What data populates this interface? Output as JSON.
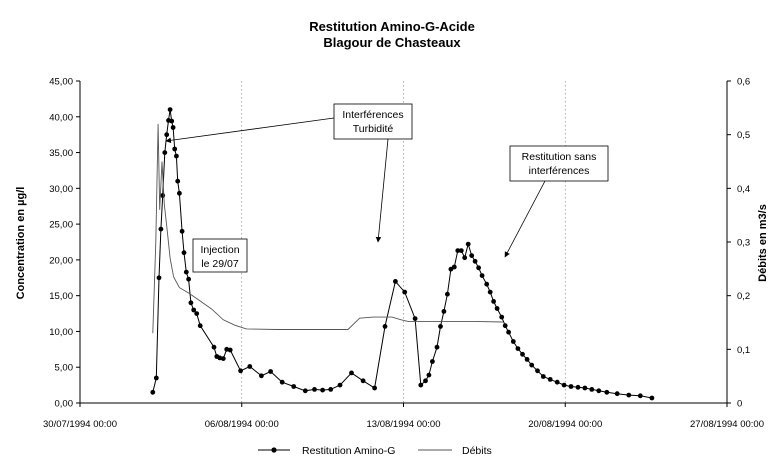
{
  "chart_data": {
    "type": "line",
    "title_line1": "Restitution Amino-G-Acide",
    "title_line2": "Blagour de Chasteaux",
    "ylabel_left": "Concentration en µg/l",
    "ylabel_right": "Débits en m3/s",
    "ylim_left": [
      0,
      45
    ],
    "ylim_right": [
      0,
      0.6
    ],
    "xlim_days": [
      0,
      28
    ],
    "y_ticks_left": [
      "0,00",
      "5,00",
      "10,00",
      "15,00",
      "20,00",
      "25,00",
      "30,00",
      "35,00",
      "40,00",
      "45,00"
    ],
    "y_ticks_right": [
      "0",
      "0,1",
      "0,2",
      "0,3",
      "0,4",
      "0,5",
      "0,6"
    ],
    "x_ticks": [
      {
        "day": 0,
        "label": "30/07/1994 00:00"
      },
      {
        "day": 7,
        "label": "06/08/1994 00:00"
      },
      {
        "day": 14,
        "label": "13/08/1994 00:00"
      },
      {
        "day": 21,
        "label": "20/08/1994 00:00"
      },
      {
        "day": 28,
        "label": "27/08/1994 00:00"
      }
    ],
    "gridlines": "vertical-dotted",
    "series": [
      {
        "name": "Restitution Amino-G",
        "axis": "left",
        "marker": "dot",
        "points": [
          [
            3.15,
            1.5
          ],
          [
            3.3,
            3.5
          ],
          [
            3.42,
            17.5
          ],
          [
            3.5,
            24.3
          ],
          [
            3.58,
            29
          ],
          [
            3.67,
            35
          ],
          [
            3.75,
            37.5
          ],
          [
            3.83,
            39.5
          ],
          [
            3.9,
            41
          ],
          [
            3.97,
            39.4
          ],
          [
            4.03,
            38.5
          ],
          [
            4.1,
            35.5
          ],
          [
            4.17,
            34.5
          ],
          [
            4.23,
            31
          ],
          [
            4.3,
            29.3
          ],
          [
            4.42,
            24
          ],
          [
            4.5,
            21
          ],
          [
            4.6,
            18.3
          ],
          [
            4.7,
            17.3
          ],
          [
            4.8,
            14
          ],
          [
            4.92,
            13
          ],
          [
            5.05,
            12.5
          ],
          [
            5.2,
            10.8
          ],
          [
            5.8,
            7.8
          ],
          [
            5.92,
            6.5
          ],
          [
            6.05,
            6.3
          ],
          [
            6.2,
            6.2
          ],
          [
            6.35,
            7.5
          ],
          [
            6.5,
            7.4
          ],
          [
            6.95,
            4.5
          ],
          [
            7.35,
            5.1
          ],
          [
            7.85,
            3.8
          ],
          [
            8.25,
            4.4
          ],
          [
            8.75,
            2.9
          ],
          [
            9.25,
            2.3
          ],
          [
            9.75,
            1.7
          ],
          [
            10.15,
            1.9
          ],
          [
            10.5,
            1.8
          ],
          [
            10.85,
            1.9
          ],
          [
            11.25,
            2.5
          ],
          [
            11.75,
            4.2
          ],
          [
            12.25,
            3.1
          ],
          [
            12.75,
            2.1
          ],
          [
            13.2,
            10.7
          ],
          [
            13.65,
            17
          ],
          [
            14.05,
            15.5
          ],
          [
            14.5,
            11.8
          ],
          [
            14.75,
            2.5
          ],
          [
            14.95,
            3.1
          ],
          [
            15.1,
            3.9
          ],
          [
            15.25,
            5.8
          ],
          [
            15.45,
            7.8
          ],
          [
            15.6,
            10.7
          ],
          [
            15.75,
            12.8
          ],
          [
            15.9,
            15.2
          ],
          [
            16.05,
            18.7
          ],
          [
            16.2,
            19
          ],
          [
            16.35,
            21.3
          ],
          [
            16.5,
            21.3
          ],
          [
            16.65,
            20.3
          ],
          [
            16.8,
            22.2
          ],
          [
            16.95,
            20.6
          ],
          [
            17.1,
            19.8
          ],
          [
            17.25,
            18.9
          ],
          [
            17.4,
            17.8
          ],
          [
            17.6,
            16.6
          ],
          [
            17.75,
            15.5
          ],
          [
            17.9,
            14.2
          ],
          [
            18.05,
            13.2
          ],
          [
            18.25,
            12
          ],
          [
            18.4,
            10.8
          ],
          [
            18.55,
            9.9
          ],
          [
            18.75,
            8.6
          ],
          [
            18.95,
            7.6
          ],
          [
            19.15,
            6.8
          ],
          [
            19.35,
            6.1
          ],
          [
            19.55,
            5.3
          ],
          [
            19.8,
            4.5
          ],
          [
            20.05,
            3.7
          ],
          [
            20.35,
            3.3
          ],
          [
            20.65,
            2.9
          ],
          [
            20.95,
            2.5
          ],
          [
            21.25,
            2.3
          ],
          [
            21.55,
            2.2
          ],
          [
            21.85,
            2.1
          ],
          [
            22.15,
            1.9
          ],
          [
            22.45,
            1.7
          ],
          [
            22.8,
            1.5
          ],
          [
            23.25,
            1.3
          ],
          [
            23.75,
            1.1
          ],
          [
            24.25,
            1
          ],
          [
            24.75,
            0.7
          ]
        ]
      },
      {
        "name": "Débits",
        "axis": "right",
        "marker": "none",
        "points": [
          [
            3.15,
            0.13
          ],
          [
            3.28,
            0.3
          ],
          [
            3.38,
            0.52
          ],
          [
            3.45,
            0.36
          ],
          [
            3.55,
            0.45
          ],
          [
            3.65,
            0.37
          ],
          [
            3.78,
            0.32
          ],
          [
            3.9,
            0.27
          ],
          [
            4.05,
            0.235
          ],
          [
            4.3,
            0.215
          ],
          [
            4.7,
            0.205
          ],
          [
            5.2,
            0.19
          ],
          [
            5.7,
            0.175
          ],
          [
            6.2,
            0.155
          ],
          [
            6.7,
            0.145
          ],
          [
            7.2,
            0.138
          ],
          [
            8.5,
            0.137
          ],
          [
            10,
            0.137
          ],
          [
            11.6,
            0.137
          ],
          [
            12.1,
            0.158
          ],
          [
            12.7,
            0.16
          ],
          [
            13.5,
            0.16
          ],
          [
            13.9,
            0.155
          ],
          [
            14.2,
            0.152
          ],
          [
            15.5,
            0.152
          ],
          [
            17,
            0.152
          ],
          [
            18.3,
            0.151
          ]
        ]
      }
    ],
    "annotations": [
      {
        "id": "interferences",
        "lines": [
          "Interférences",
          "Turbidité"
        ]
      },
      {
        "id": "restitution",
        "lines": [
          "Restitution sans",
          "interférences"
        ]
      },
      {
        "id": "injection",
        "lines": [
          "Injection",
          "le 29/07"
        ]
      }
    ],
    "legend": {
      "placement": "bottom-center",
      "items": [
        {
          "label": "Restitution Amino-G",
          "marker": "dot"
        },
        {
          "label": "Débits",
          "marker": "line"
        }
      ]
    }
  }
}
